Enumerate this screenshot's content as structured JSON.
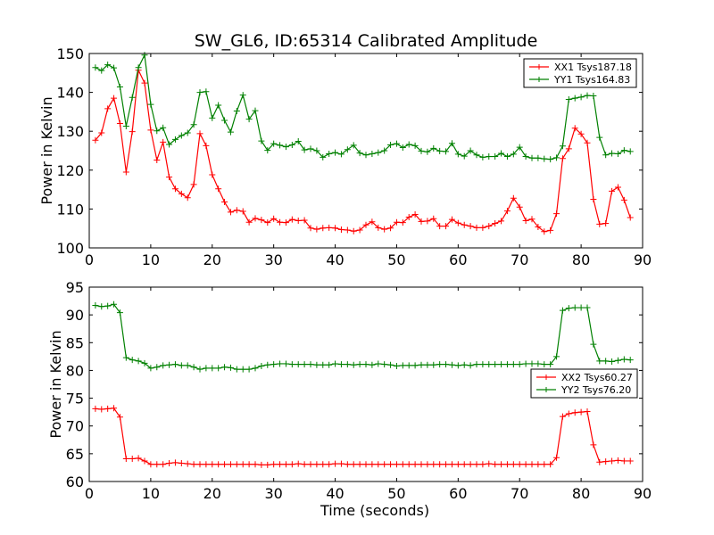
{
  "figure": {
    "title": "SW_GL6, ID:65314 Calibrated Amplitude",
    "background": "#ffffff"
  },
  "chart_data": [
    {
      "type": "line",
      "title": "SW_GL6, ID:65314 Calibrated Amplitude",
      "xlabel": "",
      "ylabel": "Power in Kelvin",
      "xlim": [
        0,
        90
      ],
      "ylim": [
        100,
        150
      ],
      "xticks": [
        0,
        10,
        20,
        30,
        40,
        50,
        60,
        70,
        80,
        90
      ],
      "yticks": [
        100,
        110,
        120,
        130,
        140,
        150
      ],
      "grid": false,
      "legend_position": "top-right",
      "series": [
        {
          "name": "XX1 Tsys187.18",
          "color": "#ff0000",
          "marker": "+",
          "x": [
            1,
            2,
            3,
            4,
            5,
            6,
            7,
            8,
            9,
            10,
            11,
            12,
            13,
            14,
            15,
            16,
            17,
            18,
            19,
            20,
            21,
            22,
            23,
            24,
            25,
            26,
            27,
            28,
            29,
            30,
            31,
            32,
            33,
            34,
            35,
            36,
            37,
            38,
            39,
            40,
            41,
            42,
            43,
            44,
            45,
            46,
            47,
            48,
            49,
            50,
            51,
            52,
            53,
            54,
            55,
            56,
            57,
            58,
            59,
            60,
            61,
            62,
            63,
            64,
            65,
            66,
            67,
            68,
            69,
            70,
            71,
            72,
            73,
            74,
            75,
            76,
            77,
            78,
            79,
            80,
            81,
            82,
            83,
            84,
            85,
            86,
            87,
            88
          ],
          "y": [
            127.7,
            129.6,
            135.8,
            138.5,
            132.0,
            119.5,
            129.9,
            145.7,
            142.4,
            130.3,
            122.6,
            127.2,
            118.2,
            115.2,
            113.9,
            112.9,
            116.3,
            129.4,
            126.3,
            118.8,
            115.2,
            111.8,
            109.2,
            109.7,
            109.4,
            106.6,
            107.6,
            107.2,
            106.5,
            107.5,
            106.6,
            106.5,
            107.3,
            107.0,
            107.1,
            105.1,
            104.8,
            105.1,
            105.2,
            105.1,
            104.7,
            104.6,
            104.3,
            104.6,
            105.9,
            106.7,
            105.2,
            104.8,
            105.1,
            106.6,
            106.5,
            107.9,
            108.6,
            106.8,
            106.9,
            107.5,
            105.6,
            105.6,
            107.3,
            106.4,
            105.9,
            105.6,
            105.2,
            105.2,
            105.6,
            106.3,
            106.9,
            109.5,
            112.8,
            110.5,
            107.0,
            107.4,
            105.4,
            104.2,
            104.5,
            108.8,
            123.0,
            125.5,
            130.8,
            129.3,
            127.0,
            112.5,
            106.1,
            106.3,
            114.6,
            115.6,
            112.3,
            107.8
          ]
        },
        {
          "name": "YY1 Tsys164.83",
          "color": "#008000",
          "marker": "+",
          "x": [
            1,
            2,
            3,
            4,
            5,
            6,
            7,
            8,
            9,
            10,
            11,
            12,
            13,
            14,
            15,
            16,
            17,
            18,
            19,
            20,
            21,
            22,
            23,
            24,
            25,
            26,
            27,
            28,
            29,
            30,
            31,
            32,
            33,
            34,
            35,
            36,
            37,
            38,
            39,
            40,
            41,
            42,
            43,
            44,
            45,
            46,
            47,
            48,
            49,
            50,
            51,
            52,
            53,
            54,
            55,
            56,
            57,
            58,
            59,
            60,
            61,
            62,
            63,
            64,
            65,
            66,
            67,
            68,
            69,
            70,
            71,
            72,
            73,
            74,
            75,
            76,
            77,
            78,
            79,
            80,
            81,
            82,
            83,
            84,
            85,
            86,
            87,
            88
          ],
          "y": [
            146.4,
            145.6,
            147.1,
            146.3,
            141.4,
            131.3,
            138.7,
            146.4,
            149.6,
            136.9,
            130.1,
            130.9,
            126.6,
            127.9,
            128.9,
            129.6,
            131.7,
            140.0,
            140.2,
            133.4,
            136.7,
            132.8,
            129.8,
            135.2,
            139.3,
            133.1,
            135.3,
            127.5,
            125.1,
            126.8,
            126.4,
            126.0,
            126.5,
            127.4,
            125.2,
            125.5,
            125.0,
            123.3,
            124.2,
            124.5,
            124.1,
            125.3,
            126.4,
            124.4,
            123.9,
            124.2,
            124.5,
            125.0,
            126.5,
            126.8,
            125.8,
            126.6,
            126.3,
            124.9,
            124.7,
            125.6,
            124.9,
            124.8,
            126.9,
            124.1,
            123.6,
            125.0,
            123.9,
            123.3,
            123.5,
            123.5,
            124.3,
            123.5,
            124.1,
            125.9,
            123.5,
            123.1,
            123.1,
            122.9,
            122.8,
            123.2,
            126.2,
            138.2,
            138.5,
            138.8,
            139.2,
            139.1,
            128.4,
            123.9,
            124.3,
            124.2,
            125.1,
            124.8
          ]
        }
      ]
    },
    {
      "type": "line",
      "title": "",
      "xlabel": "Time (seconds)",
      "ylabel": "Power in Kelvin",
      "xlim": [
        0,
        90
      ],
      "ylim": [
        60,
        95
      ],
      "xticks": [
        0,
        10,
        20,
        30,
        40,
        50,
        60,
        70,
        80,
        90
      ],
      "yticks": [
        60,
        65,
        70,
        75,
        80,
        85,
        90,
        95
      ],
      "grid": false,
      "legend_position": "center-right",
      "series": [
        {
          "name": "XX2 Tsys60.27",
          "color": "#ff0000",
          "marker": "+",
          "x": [
            1,
            2,
            3,
            4,
            5,
            6,
            7,
            8,
            9,
            10,
            11,
            12,
            13,
            14,
            15,
            16,
            17,
            18,
            19,
            20,
            21,
            22,
            23,
            24,
            25,
            26,
            27,
            28,
            29,
            30,
            31,
            32,
            33,
            34,
            35,
            36,
            37,
            38,
            39,
            40,
            41,
            42,
            43,
            44,
            45,
            46,
            47,
            48,
            49,
            50,
            51,
            52,
            53,
            54,
            55,
            56,
            57,
            58,
            59,
            60,
            61,
            62,
            63,
            64,
            65,
            66,
            67,
            68,
            69,
            70,
            71,
            72,
            73,
            74,
            75,
            76,
            77,
            78,
            79,
            80,
            81,
            82,
            83,
            84,
            85,
            86,
            87,
            88
          ],
          "y": [
            73.1,
            73.0,
            73.1,
            73.2,
            71.6,
            64.1,
            64.1,
            64.2,
            63.7,
            63.1,
            63.1,
            63.1,
            63.3,
            63.4,
            63.3,
            63.2,
            63.1,
            63.1,
            63.1,
            63.1,
            63.1,
            63.1,
            63.1,
            63.1,
            63.1,
            63.1,
            63.1,
            63.0,
            63.0,
            63.1,
            63.1,
            63.1,
            63.1,
            63.2,
            63.1,
            63.1,
            63.1,
            63.1,
            63.1,
            63.2,
            63.2,
            63.1,
            63.1,
            63.1,
            63.1,
            63.1,
            63.1,
            63.1,
            63.1,
            63.1,
            63.1,
            63.1,
            63.1,
            63.1,
            63.1,
            63.1,
            63.1,
            63.1,
            63.1,
            63.1,
            63.1,
            63.1,
            63.1,
            63.1,
            63.2,
            63.1,
            63.1,
            63.1,
            63.1,
            63.1,
            63.1,
            63.1,
            63.1,
            63.1,
            63.1,
            64.3,
            71.7,
            72.2,
            72.4,
            72.5,
            72.6,
            66.6,
            63.5,
            63.6,
            63.7,
            63.8,
            63.7,
            63.7
          ]
        },
        {
          "name": "YY2 Tsys76.20",
          "color": "#008000",
          "marker": "+",
          "x": [
            1,
            2,
            3,
            4,
            5,
            6,
            7,
            8,
            9,
            10,
            11,
            12,
            13,
            14,
            15,
            16,
            17,
            18,
            19,
            20,
            21,
            22,
            23,
            24,
            25,
            26,
            27,
            28,
            29,
            30,
            31,
            32,
            33,
            34,
            35,
            36,
            37,
            38,
            39,
            40,
            41,
            42,
            43,
            44,
            45,
            46,
            47,
            48,
            49,
            50,
            51,
            52,
            53,
            54,
            55,
            56,
            57,
            58,
            59,
            60,
            61,
            62,
            63,
            64,
            65,
            66,
            67,
            68,
            69,
            70,
            71,
            72,
            73,
            74,
            75,
            76,
            77,
            78,
            79,
            80,
            81,
            82,
            83,
            84,
            85,
            86,
            87,
            88
          ],
          "y": [
            91.7,
            91.5,
            91.6,
            91.9,
            90.4,
            82.3,
            81.9,
            81.7,
            81.3,
            80.4,
            80.6,
            80.9,
            81.0,
            81.1,
            80.9,
            80.9,
            80.6,
            80.2,
            80.4,
            80.4,
            80.4,
            80.6,
            80.5,
            80.2,
            80.2,
            80.2,
            80.4,
            80.8,
            81.0,
            81.1,
            81.2,
            81.2,
            81.1,
            81.1,
            81.1,
            81.1,
            81.0,
            81.0,
            81.0,
            81.2,
            81.1,
            81.1,
            81.0,
            81.1,
            81.1,
            81.0,
            81.2,
            81.1,
            81.0,
            80.8,
            80.9,
            80.9,
            80.9,
            81.0,
            81.0,
            81.0,
            81.1,
            81.1,
            81.0,
            80.9,
            81.0,
            80.9,
            81.1,
            81.1,
            81.1,
            81.1,
            81.1,
            81.1,
            81.1,
            81.1,
            81.2,
            81.2,
            81.2,
            81.1,
            81.1,
            82.5,
            90.8,
            91.2,
            91.3,
            91.3,
            91.3,
            84.7,
            81.7,
            81.7,
            81.6,
            81.8,
            82.0,
            81.9
          ]
        }
      ]
    }
  ]
}
